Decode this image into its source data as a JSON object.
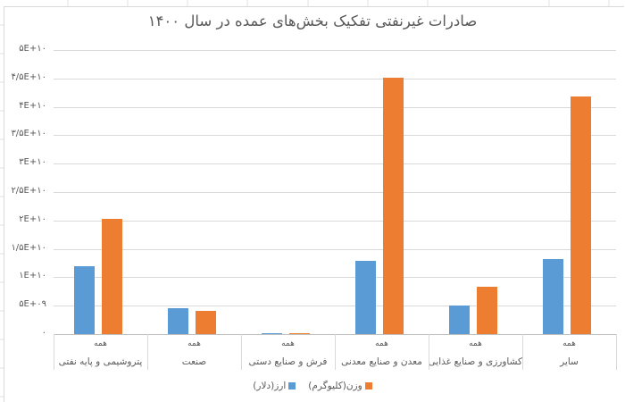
{
  "chart_data": {
    "type": "bar",
    "title": "صادرات غیرنفتی تفکیک بخش‌های عمده در سال ۱۴۰۰",
    "xlabel": "",
    "ylabel": "",
    "ylim": [
      0,
      50000000000
    ],
    "grid": true,
    "legend_position": "bottom",
    "y_ticks": [
      "۵E+۱۰",
      "۴/۵E+۱۰",
      "۴E+۱۰",
      "۳/۵E+۱۰",
      "۳E+۱۰",
      "۲/۵E+۱۰",
      "۲E+۱۰",
      "۱/۵E+۱۰",
      "۱E+۱۰",
      "۵E+۰۹",
      "۰"
    ],
    "y_tick_values": [
      50000000000,
      45000000000,
      40000000000,
      35000000000,
      30000000000,
      25000000000,
      20000000000,
      15000000000,
      10000000000,
      5000000000,
      0
    ],
    "category_group_label": "همه",
    "categories": [
      "پتروشیمی و پایه نفتی",
      "صنعت",
      "فرش و صنایع دستی",
      "معدن و صنایع معدنی",
      "کشاورزی و صنایع غذایی",
      "سایر"
    ],
    "series": [
      {
        "name": "ارز(دلار)",
        "color": "#5b9bd5",
        "values": [
          11900000000,
          4500000000,
          150000000,
          12900000000,
          5100000000,
          13200000000
        ]
      },
      {
        "name": "وزن(کلیوگرم)",
        "color": "#ed7d31",
        "values": [
          20300000000,
          4100000000,
          150000000,
          45100000000,
          8400000000,
          41900000000
        ]
      }
    ]
  },
  "legend": {
    "items": [
      {
        "label": "ارز(دلار)",
        "color": "#5b9bd5"
      },
      {
        "label": "وزن(کلیوگرم)",
        "color": "#ed7d31"
      }
    ]
  }
}
